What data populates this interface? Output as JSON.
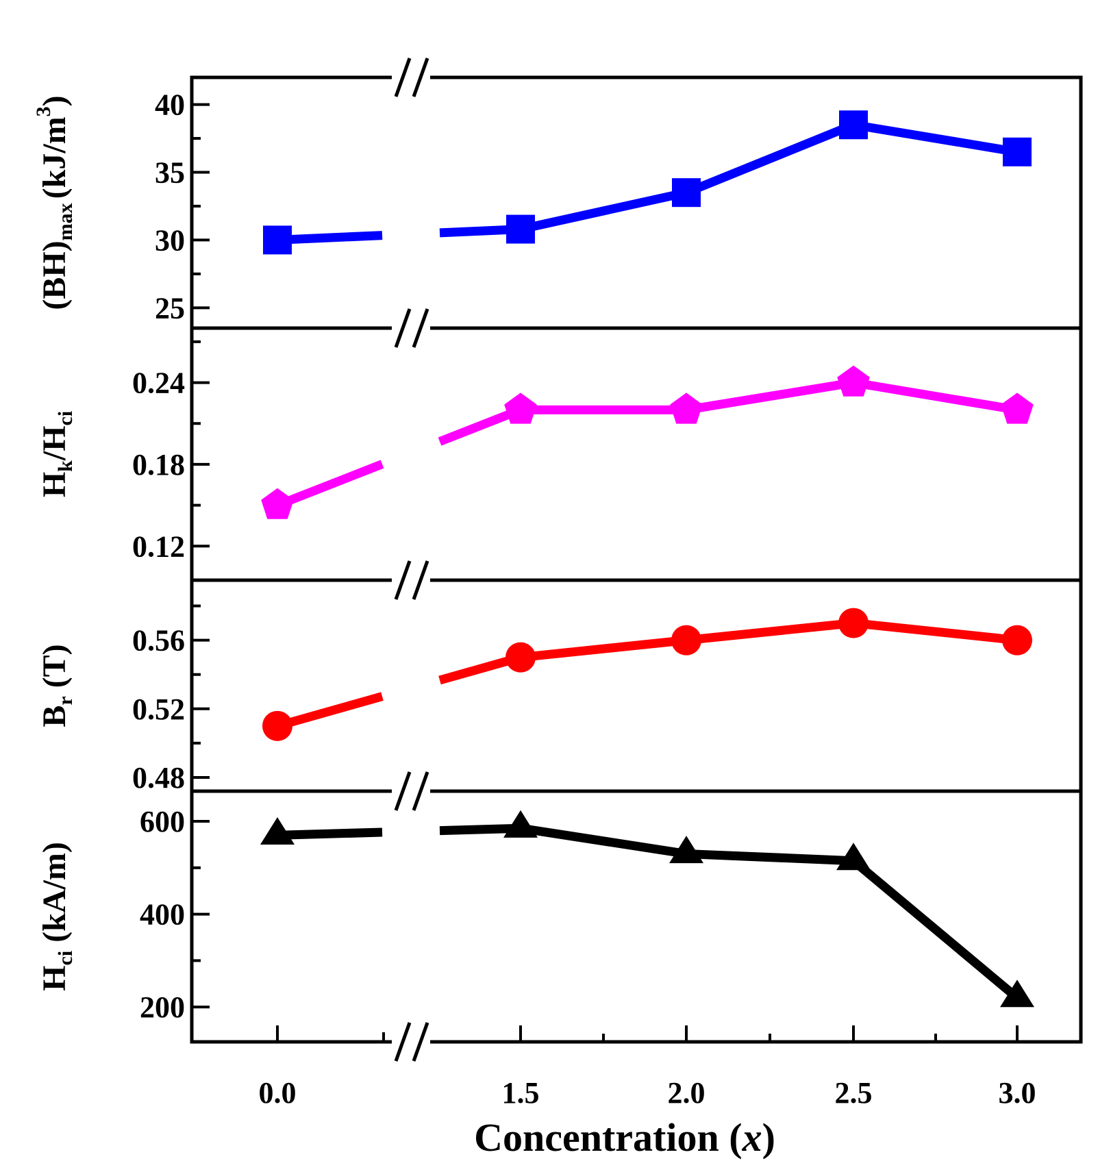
{
  "chart_data": {
    "type": "line",
    "layout": "stacked-panels",
    "xlabel": "Concentration",
    "xlabel_var": "x",
    "x_categories": [
      "0.0",
      "1.5",
      "2.0",
      "2.5",
      "3.0"
    ],
    "x_axis_break": "//",
    "panels": [
      {
        "id": "bhmax",
        "ylabel_main": "(BH)",
        "ylabel_sub": "max",
        "ylabel_units": "(kJ/m",
        "ylabel_units_sup": "3",
        "ylabel_units_close": ")",
        "ylim": [
          23.5,
          42
        ],
        "yticks": [
          "25",
          "30",
          "35",
          "40"
        ],
        "marker": "square",
        "color": "#0000ff",
        "values": [
          30.0,
          30.8,
          33.5,
          38.5,
          36.5
        ]
      },
      {
        "id": "squareness",
        "ylabel_parts": [
          "H",
          "k",
          "/H",
          "ci"
        ],
        "ylim": [
          0.095,
          0.28
        ],
        "yticks": [
          "0.12",
          "0.18",
          "0.24"
        ],
        "marker": "pentagon",
        "color": "#ff00ff",
        "values": [
          0.15,
          0.22,
          0.22,
          0.24,
          0.22
        ]
      },
      {
        "id": "br",
        "ylabel_parts": [
          "B",
          "r",
          " (T)"
        ],
        "ylim": [
          0.472,
          0.595
        ],
        "yticks": [
          "0.48",
          "0.52",
          "0.56"
        ],
        "marker": "circle",
        "color": "#ff0000",
        "values": [
          0.51,
          0.55,
          0.56,
          0.57,
          0.56
        ]
      },
      {
        "id": "hci",
        "ylabel_parts": [
          "H",
          "ci",
          " (kA/m)"
        ],
        "ylim": [
          125,
          665
        ],
        "yticks": [
          "200",
          "400",
          "600"
        ],
        "marker": "triangle",
        "color": "#000000",
        "values": [
          570,
          585,
          530,
          515,
          220
        ]
      }
    ]
  }
}
